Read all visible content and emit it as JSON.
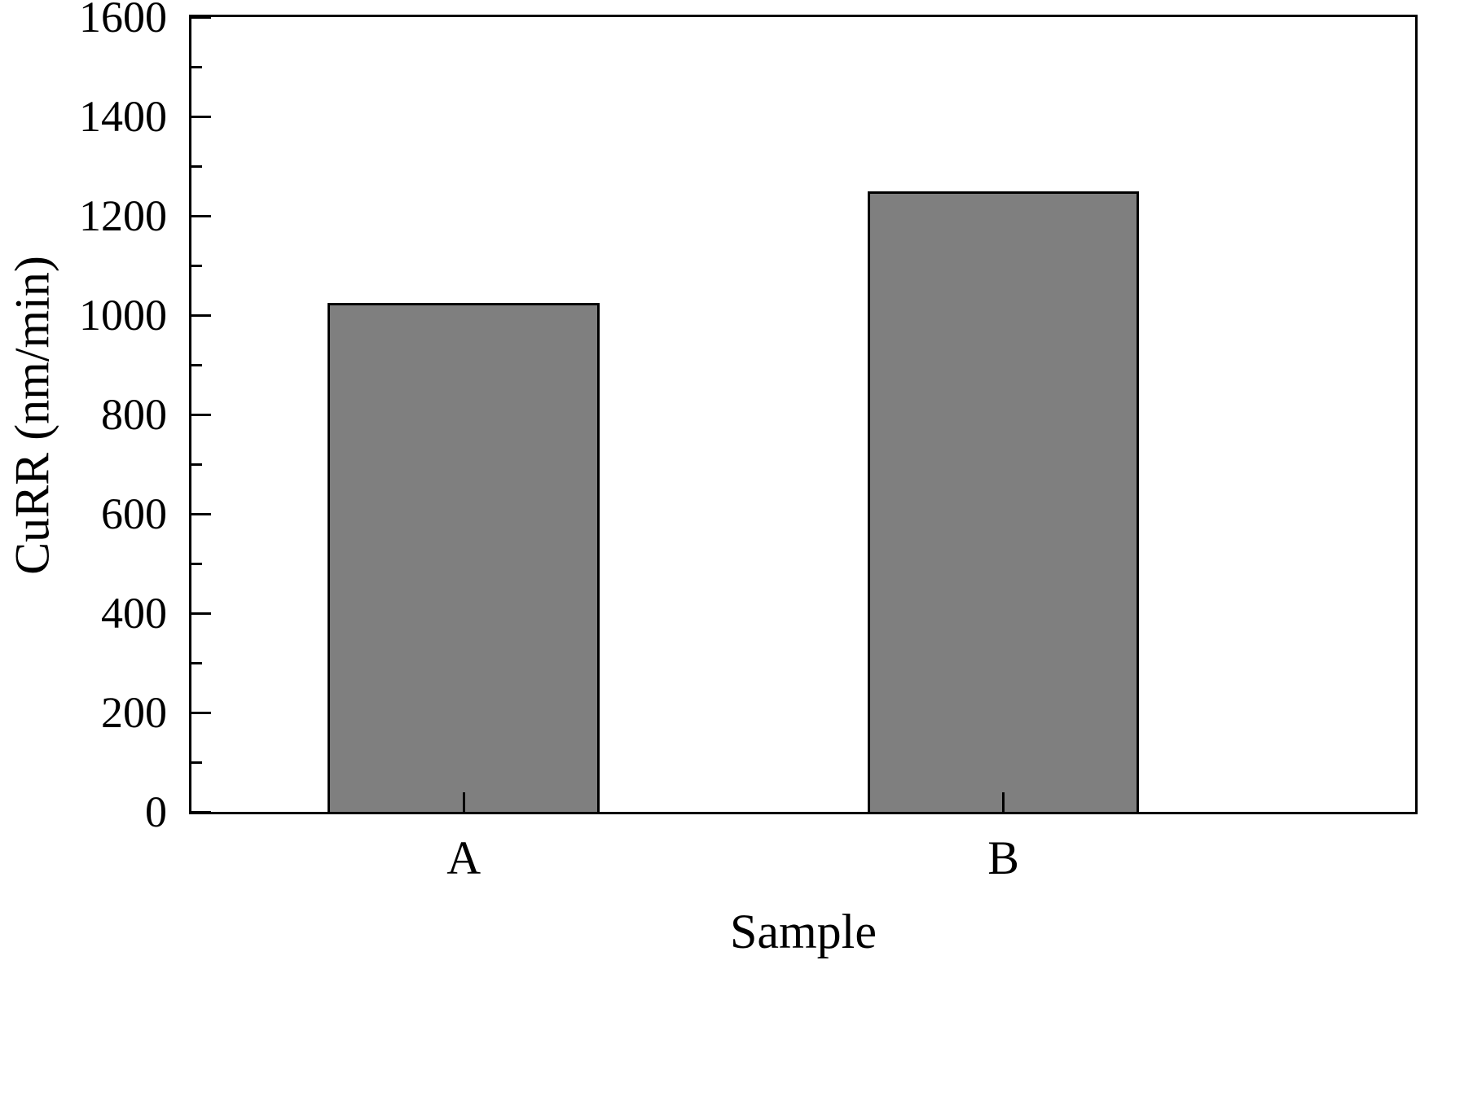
{
  "chart_data": {
    "type": "bar",
    "categories": [
      "A",
      "B"
    ],
    "values": [
      1025,
      1250
    ],
    "title": "",
    "xlabel": "Sample",
    "ylabel": "CuRR (nm/min)",
    "ylim": [
      0,
      1600
    ],
    "ytick_step": 200,
    "yminor_step": 100,
    "ytick_labels": [
      "0",
      "200",
      "400",
      "600",
      "800",
      "1000",
      "1200",
      "1400",
      "1600"
    ],
    "bar_color": "#7f7f7f",
    "bar_border_color": "#000000",
    "axis_color": "#000000",
    "background_color": "#ffffff",
    "grid": false,
    "legend_position": "none"
  }
}
